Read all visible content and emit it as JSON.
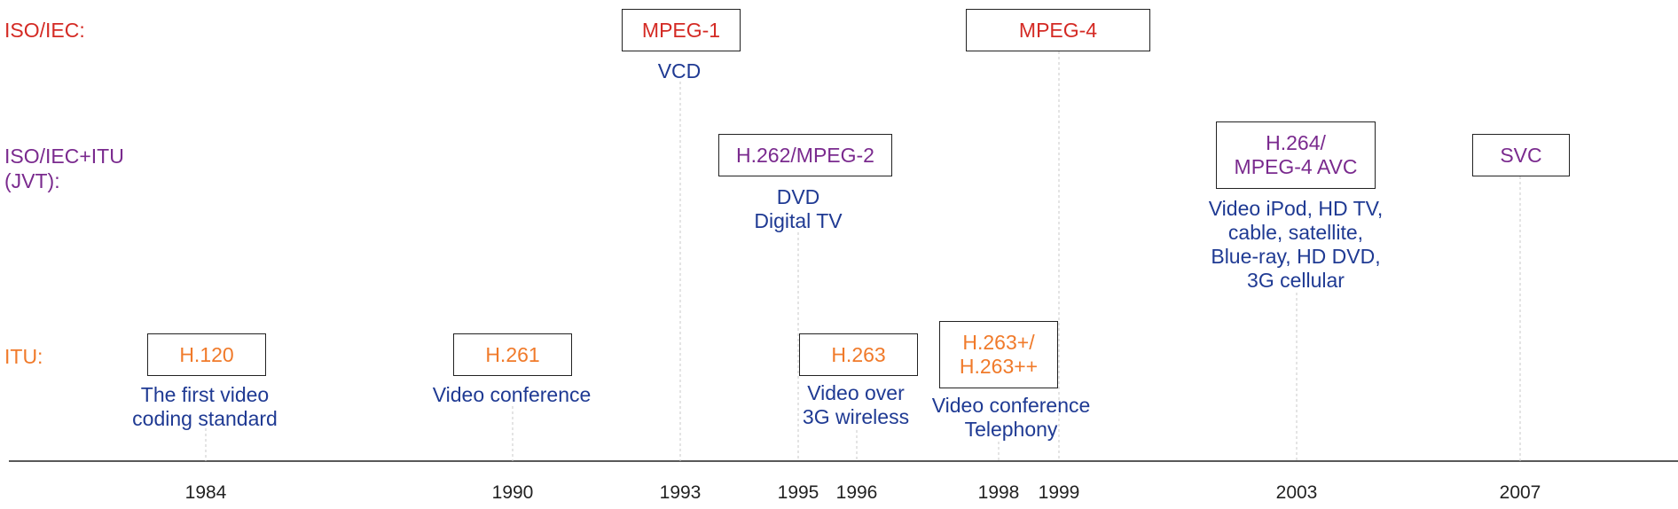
{
  "lanes": {
    "iso": "ISO/IEC:",
    "jvt_line1": "ISO/IEC+ITU",
    "jvt_line2": "(JVT):",
    "itu": "ITU:"
  },
  "standards": [
    {
      "key": "h120",
      "label": "H.120",
      "lane": "itu",
      "year": "1984",
      "note": "The first video\ncoding standard"
    },
    {
      "key": "h261",
      "label": "H.261",
      "lane": "itu",
      "year": "1990",
      "note": "Video conference"
    },
    {
      "key": "mpeg1",
      "label": "MPEG-1",
      "lane": "iso",
      "year": "1993",
      "note": "VCD"
    },
    {
      "key": "h262",
      "label": "H.262/MPEG-2",
      "lane": "jvt",
      "year": "1995",
      "note": "DVD\nDigital TV"
    },
    {
      "key": "h263",
      "label": "H.263",
      "lane": "itu",
      "year": "1996",
      "note": "Video over\n3G wireless"
    },
    {
      "key": "h263pp",
      "label": "H.263+/\nH.263++",
      "lane": "itu",
      "year": "1998",
      "note": "Video conference\nTelephony"
    },
    {
      "key": "mpeg4",
      "label": "MPEG-4",
      "lane": "iso",
      "year": "1999",
      "note": ""
    },
    {
      "key": "h264",
      "label": "H.264/\nMPEG-4 AVC",
      "lane": "jvt",
      "year": "2003",
      "note": "Video iPod, HD TV,\ncable, satellite,\nBlue-ray, HD DVD,\n3G cellular"
    },
    {
      "key": "svc",
      "label": "SVC",
      "lane": "jvt",
      "year": "2007",
      "note": ""
    }
  ],
  "years": [
    "1984",
    "1990",
    "1993",
    "1995",
    "1996",
    "1998",
    "1999",
    "2003",
    "2007"
  ],
  "colors": {
    "iso": "#d42a24",
    "jvt": "#7a2a8e",
    "itu": "#f07a2a",
    "note": "#1f3a93",
    "axis": "#222222"
  }
}
